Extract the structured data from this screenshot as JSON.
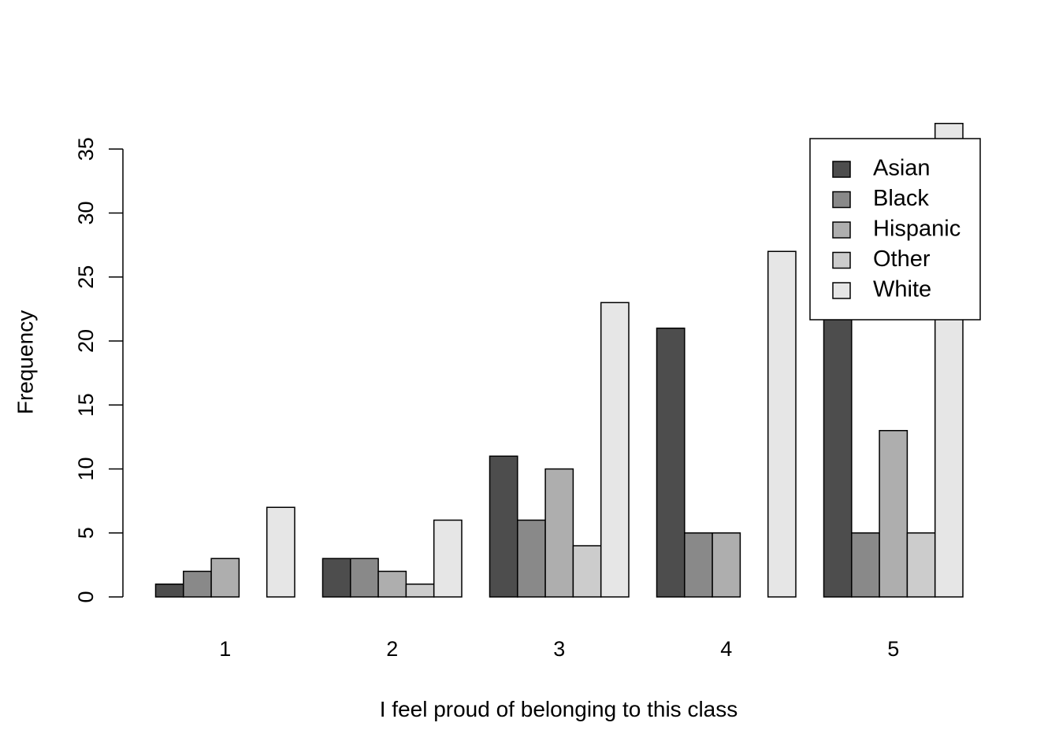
{
  "chart_data": {
    "type": "bar",
    "categories": [
      "1",
      "2",
      "3",
      "4",
      "5"
    ],
    "series": [
      {
        "name": "Asian",
        "values": [
          1,
          3,
          11,
          21,
          23
        ],
        "color": "#4d4d4d"
      },
      {
        "name": "Black",
        "values": [
          2,
          3,
          6,
          5,
          5
        ],
        "color": "#898989"
      },
      {
        "name": "Hispanic",
        "values": [
          3,
          2,
          10,
          5,
          13
        ],
        "color": "#aeaeae"
      },
      {
        "name": "Other",
        "values": [
          0,
          1,
          4,
          0,
          5
        ],
        "color": "#cccccc"
      },
      {
        "name": "White",
        "values": [
          7,
          6,
          23,
          27,
          37
        ],
        "color": "#e6e6e6"
      }
    ],
    "xlabel": "I feel proud of belonging to this class",
    "ylabel": "Frequency",
    "yticks": [
      "0",
      "5",
      "10",
      "15",
      "20",
      "25",
      "30",
      "35"
    ],
    "ylim": [
      0,
      35
    ],
    "grid": false,
    "legend_position": "top-right"
  }
}
